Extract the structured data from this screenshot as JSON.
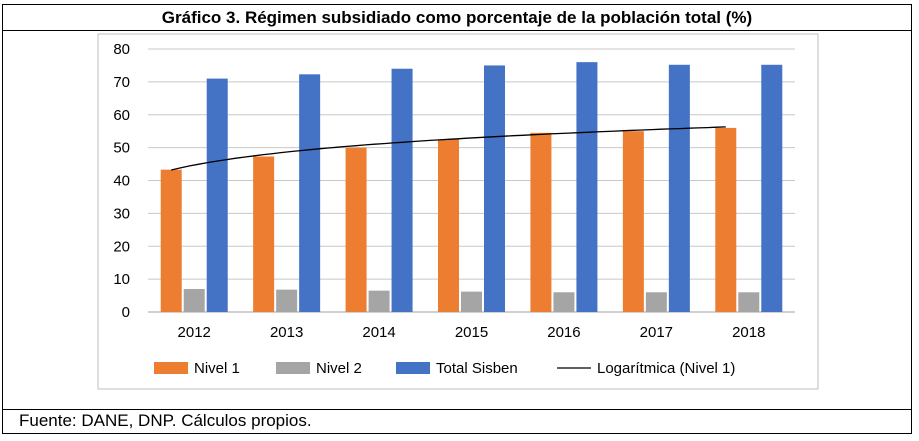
{
  "title": "Gráfico 3. Régimen subsidiado como porcentaje de la población total (%)",
  "source": "Fuente: DANE, DNP. Cálculos propios.",
  "colors": {
    "nivel1": "#ed7d31",
    "nivel2": "#a5a5a5",
    "total": "#4472c4",
    "trend": "#000000",
    "grid": "#c8c8c8"
  },
  "chart_data": {
    "type": "bar",
    "categories": [
      "2012",
      "2013",
      "2014",
      "2015",
      "2016",
      "2017",
      "2018"
    ],
    "series": [
      {
        "name": "Nivel 1",
        "values": [
          43.3,
          47.3,
          50,
          52.5,
          54.5,
          55,
          56
        ]
      },
      {
        "name": "Nivel 2",
        "values": [
          7,
          6.8,
          6.5,
          6.2,
          6,
          6,
          6
        ]
      },
      {
        "name": "Total Sisben",
        "values": [
          71,
          72.3,
          74,
          75,
          76,
          75.2,
          75.2
        ]
      }
    ],
    "trendline": {
      "name": "Logarítmica (Nivel 1)",
      "type": "log",
      "values": [
        43.2,
        48.0,
        50.9,
        52.9,
        54.5,
        55.8,
        56.3
      ]
    },
    "ylim": [
      0,
      80
    ],
    "yticks": [
      "0",
      "10",
      "20",
      "30",
      "40",
      "50",
      "60",
      "70",
      "80"
    ],
    "grid": true,
    "legend_position": "bottom"
  }
}
